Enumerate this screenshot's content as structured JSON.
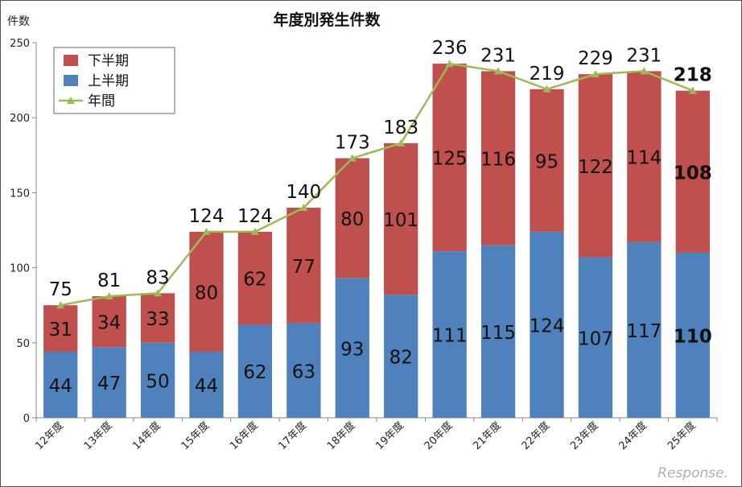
{
  "chart_data": {
    "type": "bar",
    "stacked": true,
    "title": "年度別発生件数",
    "ylabel": "件数",
    "xlabel": "",
    "ylim": [
      0,
      250
    ],
    "yticks": [
      0,
      50,
      100,
      150,
      200,
      250
    ],
    "grid": false,
    "legend_position": "top-left",
    "categories": [
      "12年度",
      "13年度",
      "14年度",
      "15年度",
      "16年度",
      "17年度",
      "18年度",
      "19年度",
      "20年度",
      "21年度",
      "22年度",
      "23年度",
      "24年度",
      "25年度"
    ],
    "series": [
      {
        "name": "上半期",
        "type": "bar",
        "color": "#4f81bd",
        "values": [
          44,
          47,
          50,
          44,
          62,
          63,
          93,
          82,
          111,
          115,
          124,
          107,
          117,
          110
        ]
      },
      {
        "name": "下半期",
        "type": "bar",
        "color": "#c0504d",
        "values": [
          31,
          34,
          33,
          80,
          62,
          77,
          80,
          101,
          125,
          116,
          95,
          122,
          114,
          108
        ]
      },
      {
        "name": "年間",
        "type": "line",
        "color": "#9bbb59",
        "values": [
          75,
          81,
          83,
          124,
          124,
          140,
          173,
          183,
          236,
          231,
          219,
          229,
          231,
          218
        ]
      }
    ],
    "legend_order": [
      "下半期",
      "上半期",
      "年間"
    ],
    "bold_last_category_labels": true
  },
  "watermark": "Response."
}
